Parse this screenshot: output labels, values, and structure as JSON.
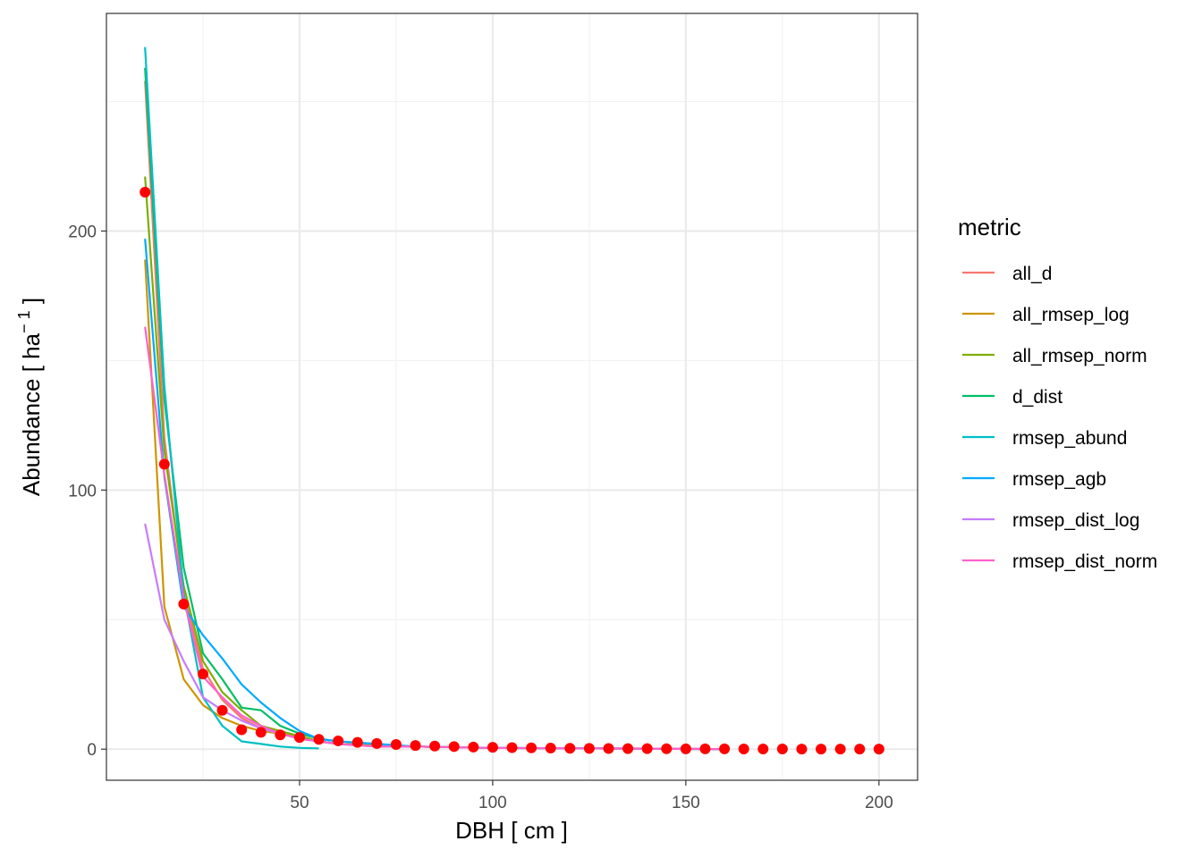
{
  "chart_data": {
    "type": "line",
    "title": "",
    "xlabel": "DBH [ cm ]",
    "ylabel_main": "Abundance [ ha",
    "ylabel_sup": "− 1",
    "ylabel_close": " ]",
    "xlim": [
      0,
      210
    ],
    "ylim": [
      -12,
      284
    ],
    "x_major_ticks": [
      50,
      100,
      150,
      200
    ],
    "x_tick_labels": [
      "50",
      "100",
      "150",
      "200"
    ],
    "x_minor_ticks": [
      25,
      75,
      125,
      175
    ],
    "y_major_ticks": [
      0,
      100,
      200
    ],
    "y_tick_labels": [
      "0",
      "100",
      "200"
    ],
    "y_minor_ticks": [
      50,
      150,
      250
    ],
    "grid": true,
    "legend_title": "metric",
    "legend_position": "right",
    "series": [
      {
        "name": "all_d",
        "color": "#F8766D",
        "x": [
          10,
          15,
          20,
          25,
          30,
          35,
          40,
          45,
          50,
          55,
          60,
          70,
          80,
          100,
          120,
          140,
          160
        ],
        "y": [
          258,
          120,
          60,
          31,
          19,
          12,
          8,
          6,
          5,
          3,
          2,
          1.5,
          1,
          0.5,
          0.3,
          0.2,
          0
        ]
      },
      {
        "name": "all_rmsep_log",
        "color": "#CD9600",
        "x": [
          10,
          15,
          20,
          25,
          30,
          35,
          40,
          45,
          50,
          55,
          60,
          70,
          80,
          100,
          120,
          140,
          160
        ],
        "y": [
          189,
          55,
          27,
          17,
          12,
          9,
          7,
          6,
          5,
          3,
          2,
          1.5,
          1,
          0.5,
          0.3,
          0.2,
          0
        ]
      },
      {
        "name": "all_rmsep_norm",
        "color": "#7CAE00",
        "x": [
          10,
          15,
          20,
          25,
          30,
          35,
          40,
          45,
          50,
          55,
          60,
          70,
          80,
          100,
          120,
          140,
          160
        ],
        "y": [
          221,
          115,
          63,
          34,
          22,
          15,
          9,
          7,
          5,
          3,
          2,
          1,
          1,
          0.5,
          0.3,
          0.2,
          0
        ]
      },
      {
        "name": "d_dist",
        "color": "#00BE67",
        "x": [
          10,
          15,
          20,
          25,
          30,
          35,
          40,
          45,
          50,
          55,
          60,
          70,
          80,
          100,
          120,
          140,
          160
        ],
        "y": [
          263,
          135,
          70,
          37,
          27,
          16,
          15,
          9,
          6,
          4,
          3,
          2,
          1,
          0.5,
          0.3,
          0.2,
          0
        ]
      },
      {
        "name": "rmsep_abund",
        "color": "#00BFC4",
        "x": [
          10,
          15,
          20,
          25,
          30,
          35,
          40,
          45,
          50,
          55
        ],
        "y": [
          271,
          140,
          60,
          20,
          9,
          3,
          2,
          1,
          0.5,
          0.3
        ]
      },
      {
        "name": "rmsep_agb",
        "color": "#00A9FF",
        "x": [
          10,
          15,
          20,
          25,
          30,
          35,
          40,
          45,
          50,
          55,
          60,
          70,
          80,
          100,
          120,
          140,
          160
        ],
        "y": [
          197,
          105,
          55,
          44,
          35,
          25,
          18,
          12,
          7,
          4,
          3,
          2,
          1,
          0.5,
          0.3,
          0.2,
          0
        ]
      },
      {
        "name": "rmsep_dist_log",
        "color": "#C77CFF",
        "x": [
          10,
          15,
          20,
          25,
          30,
          35,
          40,
          45,
          50,
          55,
          60,
          70,
          80,
          100,
          120,
          140,
          160
        ],
        "y": [
          87,
          50,
          34,
          20,
          15,
          11,
          8,
          6,
          4,
          3,
          2,
          1,
          1,
          0.5,
          0.3,
          0.2,
          0
        ]
      },
      {
        "name": "rmsep_dist_norm",
        "color": "#FF61CC",
        "x": [
          10,
          15,
          20,
          25,
          30,
          35,
          40,
          45,
          50,
          55,
          60,
          70,
          80,
          100,
          120,
          140,
          160
        ],
        "y": [
          163,
          106,
          58,
          28,
          20,
          13,
          9,
          6,
          4,
          3,
          2,
          1,
          1,
          0.5,
          0.3,
          0.2,
          0
        ]
      }
    ],
    "observed": {
      "color": "#FF0000",
      "x": [
        10,
        15,
        20,
        25,
        30,
        35,
        40,
        45,
        50,
        55,
        60,
        65,
        70,
        75,
        80,
        85,
        90,
        95,
        100,
        105,
        110,
        115,
        120,
        125,
        130,
        135,
        140,
        145,
        150,
        155,
        160,
        165,
        170,
        175,
        180,
        185,
        190,
        195,
        200
      ],
      "y": [
        215,
        110,
        56,
        29,
        15,
        7.5,
        6.5,
        5.5,
        4.5,
        3.8,
        3.2,
        2.6,
        2.2,
        1.8,
        1.4,
        1.2,
        1.0,
        0.8,
        0.7,
        0.6,
        0.5,
        0.4,
        0.35,
        0.3,
        0.25,
        0.2,
        0.2,
        0.15,
        0.12,
        0.1,
        0.1,
        0.08,
        0.07,
        0.06,
        0.05,
        0.05,
        0.04,
        0.03,
        0.03
      ]
    }
  }
}
